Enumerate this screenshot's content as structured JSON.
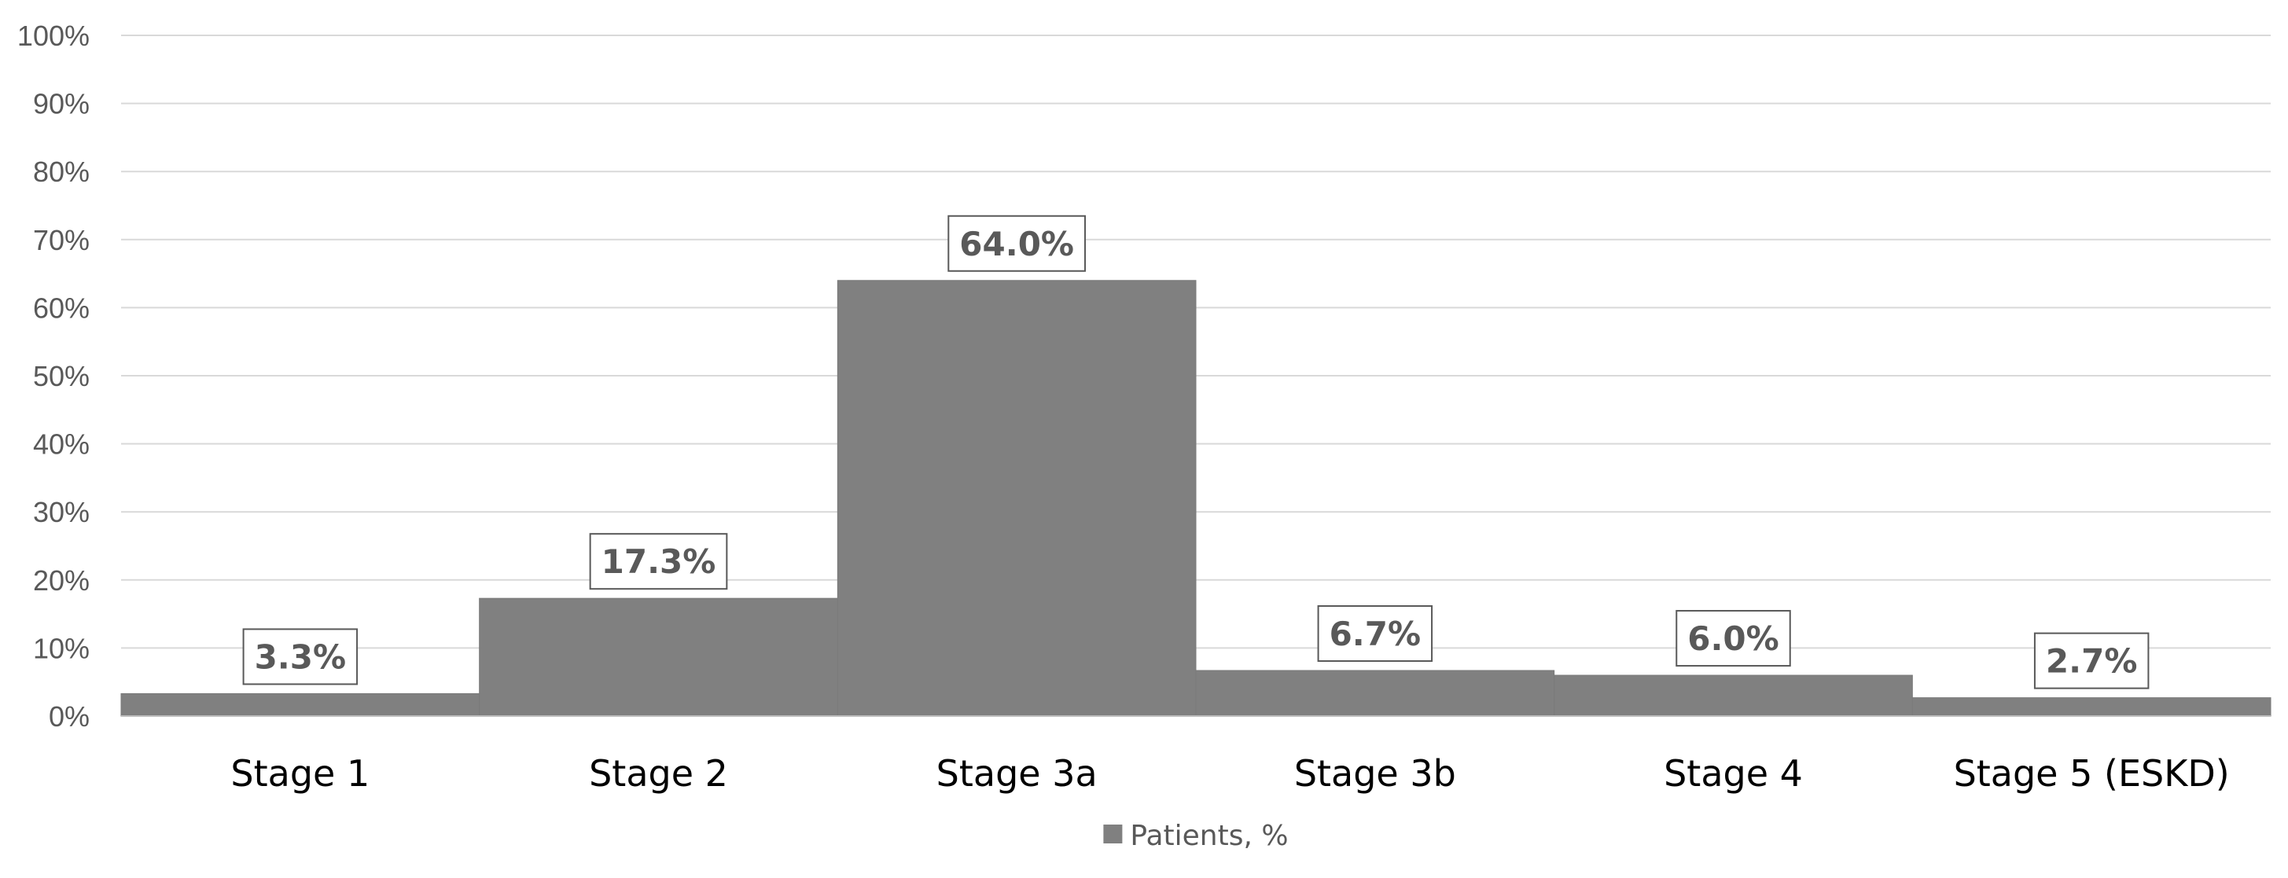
{
  "chart_data": {
    "type": "bar",
    "categories": [
      "Stage 1",
      "Stage 2",
      "Stage 3a",
      "Stage 3b",
      "Stage 4",
      "Stage 5 (ESKD)"
    ],
    "series": [
      {
        "name": "Patients, %",
        "values": [
          3.3,
          17.3,
          64.0,
          6.7,
          6.0,
          2.7
        ],
        "data_labels": [
          "3.3%",
          "17.3%",
          "64.0%",
          "6.7%",
          "6.0%",
          "2.7%"
        ]
      }
    ],
    "ylim": [
      0,
      100
    ],
    "y_ticks": [
      0,
      10,
      20,
      30,
      40,
      50,
      60,
      70,
      80,
      90,
      100
    ],
    "y_tick_labels": [
      "0%",
      "10%",
      "20%",
      "30%",
      "40%",
      "50%",
      "60%",
      "70%",
      "80%",
      "90%",
      "100%"
    ],
    "grid": true,
    "legend": {
      "position": "bottom",
      "entries": [
        "Patients, %"
      ]
    },
    "title": "",
    "xlabel": "",
    "ylabel": ""
  },
  "colors": {
    "bar": "#808080",
    "bar_edge": "#7a7a7a",
    "grid": "#d9d9d9",
    "axis": "#bfbfbf",
    "label_border": "#595959"
  }
}
